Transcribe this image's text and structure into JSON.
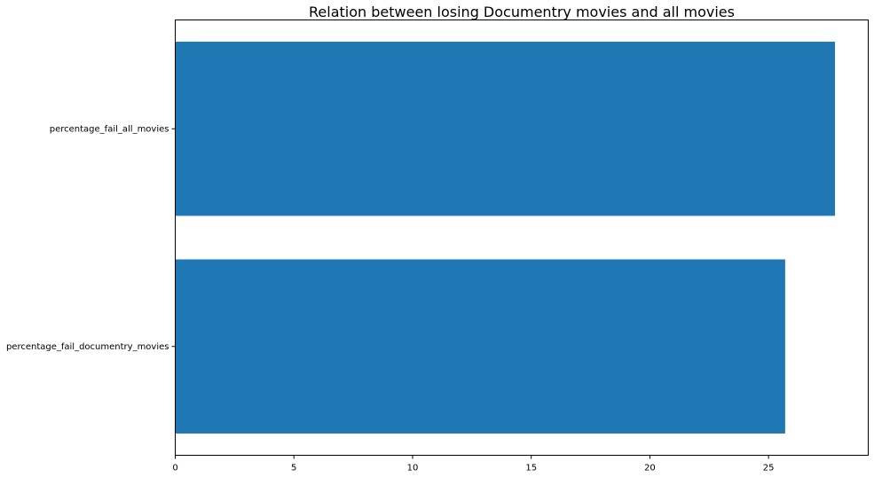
{
  "chart_data": {
    "type": "bar",
    "orientation": "horizontal",
    "title": "Relation between losing Documentry movies and all movies",
    "xlabel": "",
    "ylabel": "",
    "categories": [
      "percentage_fail_all_movies",
      "percentage_fail_documentry_movies"
    ],
    "values": [
      27.8,
      25.7
    ],
    "xlim": [
      0,
      29.2
    ],
    "xticks": [
      0,
      5,
      10,
      15,
      20,
      25
    ],
    "grid": false,
    "bar_color": "#1f77b4"
  }
}
